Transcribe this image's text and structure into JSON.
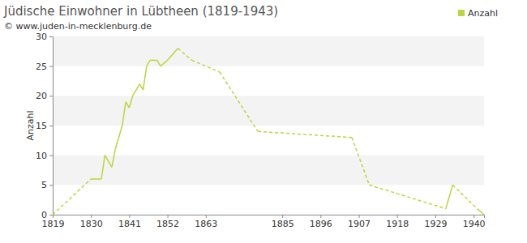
{
  "chart_data": {
    "type": "line",
    "title": "Jüdische Einwohner in Lübtheen (1819-1943)",
    "subtitle": "© www.juden-in-mecklenburg.de",
    "y_label": "Anzahl",
    "x": [
      1819,
      1830,
      1833,
      1834,
      1836,
      1837,
      1839,
      1840,
      1841,
      1842,
      1844,
      1845,
      1846,
      1847,
      1849,
      1850,
      1852,
      1855,
      1859,
      1867,
      1878,
      1905,
      1910,
      1932,
      1934,
      1941,
      1943
    ],
    "series": [
      {
        "name": "Anzahl",
        "color": "#bcd53b",
        "values": [
          0,
          6,
          6,
          10,
          8,
          11,
          15,
          19,
          18,
          20,
          22,
          21,
          25,
          26,
          26,
          25,
          26,
          28,
          26,
          24,
          14,
          13,
          5,
          1,
          5,
          1,
          0
        ]
      }
    ],
    "xlim": [
      1819,
      1943
    ],
    "xticks": [
      1819,
      1830,
      1841,
      1852,
      1863,
      1885,
      1896,
      1907,
      1918,
      1929,
      1940
    ],
    "ylim": [
      0,
      30
    ],
    "yticks": [
      0,
      5,
      10,
      15,
      20,
      25,
      30
    ],
    "grid": true,
    "legend": "top-right"
  }
}
